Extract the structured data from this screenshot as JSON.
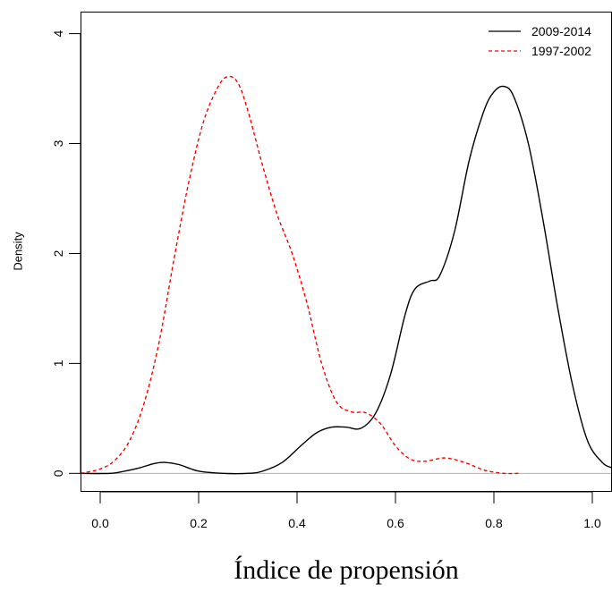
{
  "chart_data": {
    "type": "line",
    "title": "",
    "xlabel": "Índice de propensión",
    "ylabel": "Density",
    "xlim": [
      -0.04,
      1.04
    ],
    "ylim": [
      -0.16,
      4.2
    ],
    "x_ticks": [
      0.0,
      0.2,
      0.4,
      0.6,
      0.8,
      1.0
    ],
    "x_tick_labels": [
      "0.0",
      "0.2",
      "0.4",
      "0.6",
      "0.8",
      "1.0"
    ],
    "y_ticks": [
      0,
      1,
      2,
      3,
      4
    ],
    "y_tick_labels": [
      "0",
      "1",
      "2",
      "3",
      "4"
    ],
    "grid": false,
    "baseline": 0,
    "baseline_color": "#b0b0b0",
    "legend_position": "top-right",
    "series": [
      {
        "name": "2009-2014",
        "color": "#000000",
        "dash": "solid",
        "points": [
          [
            -0.04,
            0.0
          ],
          [
            0.02,
            0.0
          ],
          [
            0.05,
            0.02
          ],
          [
            0.08,
            0.05
          ],
          [
            0.11,
            0.09
          ],
          [
            0.13,
            0.1
          ],
          [
            0.16,
            0.08
          ],
          [
            0.2,
            0.02
          ],
          [
            0.25,
            0.0
          ],
          [
            0.3,
            0.0
          ],
          [
            0.33,
            0.02
          ],
          [
            0.37,
            0.1
          ],
          [
            0.41,
            0.26
          ],
          [
            0.44,
            0.37
          ],
          [
            0.47,
            0.42
          ],
          [
            0.5,
            0.42
          ],
          [
            0.53,
            0.41
          ],
          [
            0.56,
            0.55
          ],
          [
            0.59,
            0.9
          ],
          [
            0.62,
            1.45
          ],
          [
            0.64,
            1.68
          ],
          [
            0.67,
            1.75
          ],
          [
            0.69,
            1.8
          ],
          [
            0.72,
            2.2
          ],
          [
            0.75,
            2.85
          ],
          [
            0.78,
            3.3
          ],
          [
            0.8,
            3.47
          ],
          [
            0.82,
            3.52
          ],
          [
            0.84,
            3.43
          ],
          [
            0.87,
            3.0
          ],
          [
            0.9,
            2.3
          ],
          [
            0.93,
            1.5
          ],
          [
            0.96,
            0.8
          ],
          [
            0.99,
            0.3
          ],
          [
            1.02,
            0.1
          ],
          [
            1.04,
            0.05
          ]
        ]
      },
      {
        "name": "1997-2002",
        "color": "#ff0000",
        "dash": "dashed",
        "points": [
          [
            -0.04,
            0.0
          ],
          [
            0.0,
            0.04
          ],
          [
            0.03,
            0.12
          ],
          [
            0.06,
            0.3
          ],
          [
            0.09,
            0.65
          ],
          [
            0.12,
            1.2
          ],
          [
            0.15,
            1.95
          ],
          [
            0.18,
            2.65
          ],
          [
            0.21,
            3.2
          ],
          [
            0.24,
            3.52
          ],
          [
            0.26,
            3.61
          ],
          [
            0.28,
            3.55
          ],
          [
            0.3,
            3.3
          ],
          [
            0.33,
            2.8
          ],
          [
            0.36,
            2.35
          ],
          [
            0.39,
            2.0
          ],
          [
            0.42,
            1.55
          ],
          [
            0.45,
            1.0
          ],
          [
            0.48,
            0.65
          ],
          [
            0.51,
            0.56
          ],
          [
            0.54,
            0.55
          ],
          [
            0.57,
            0.45
          ],
          [
            0.6,
            0.25
          ],
          [
            0.63,
            0.13
          ],
          [
            0.66,
            0.11
          ],
          [
            0.7,
            0.14
          ],
          [
            0.74,
            0.1
          ],
          [
            0.78,
            0.03
          ],
          [
            0.82,
            0.0
          ],
          [
            0.85,
            0.0
          ]
        ]
      }
    ]
  }
}
